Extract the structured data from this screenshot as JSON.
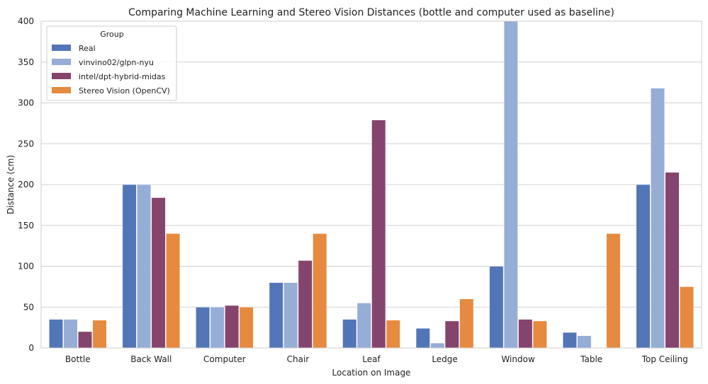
{
  "chart_data": {
    "type": "bar",
    "title": "Comparing Machine Learning and Stereo Vision Distances (bottle and computer used as baseline)",
    "xlabel": "Location on Image",
    "ylabel": "Distance (cm)",
    "ylim": [
      0,
      400
    ],
    "yticks": [
      0,
      50,
      100,
      150,
      200,
      250,
      300,
      350,
      400
    ],
    "grid": true,
    "legend": {
      "title": "Group",
      "placement": "top-left"
    },
    "categories": [
      "Bottle",
      "Back Wall",
      "Computer",
      "Chair",
      "Leaf",
      "Ledge",
      "Window",
      "Table",
      "Top Ceiling"
    ],
    "series": [
      {
        "name": "Real",
        "color": "#5275b8",
        "values": [
          35,
          200,
          50,
          80,
          35,
          24,
          100,
          19,
          200
        ]
      },
      {
        "name": "vinvino02/glpn-nyu",
        "color": "#96add6",
        "values": [
          35,
          200,
          50,
          80,
          55,
          6,
          400,
          15,
          318
        ]
      },
      {
        "name": "intel/dpt-hybrid-midas",
        "color": "#85446d",
        "values": [
          20,
          184,
          52,
          107,
          279,
          33,
          35,
          0,
          215
        ]
      },
      {
        "name": "Stereo Vision (OpenCV)",
        "color": "#e68a3f",
        "values": [
          34,
          140,
          50,
          140,
          34,
          60,
          33,
          140,
          75
        ]
      }
    ]
  }
}
